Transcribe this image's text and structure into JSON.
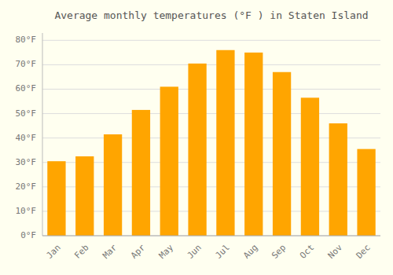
{
  "chart_data": {
    "type": "bar",
    "title": "Average monthly temperatures (°F ) in Staten Island",
    "categories": [
      "Jan",
      "Feb",
      "Mar",
      "Apr",
      "May",
      "Jun",
      "Jul",
      "Aug",
      "Sep",
      "Oct",
      "Nov",
      "Dec"
    ],
    "values": [
      30.5,
      32.5,
      41.5,
      51.5,
      61.0,
      70.5,
      76.0,
      75.0,
      67.0,
      56.5,
      46.0,
      35.5
    ],
    "color": "#FFA500",
    "ylim": [
      0,
      83
    ],
    "yticks": [
      {
        "value": 0,
        "label": "0°F"
      },
      {
        "value": 10,
        "label": "10°F"
      },
      {
        "value": 20,
        "label": "20°F"
      },
      {
        "value": 30,
        "label": "30°F"
      },
      {
        "value": 40,
        "label": "40°F"
      },
      {
        "value": 50,
        "label": "50°F"
      },
      {
        "value": 60,
        "label": "60°F"
      },
      {
        "value": 70,
        "label": "70°F"
      },
      {
        "value": 80,
        "label": "80°F"
      }
    ],
    "grid": true
  }
}
